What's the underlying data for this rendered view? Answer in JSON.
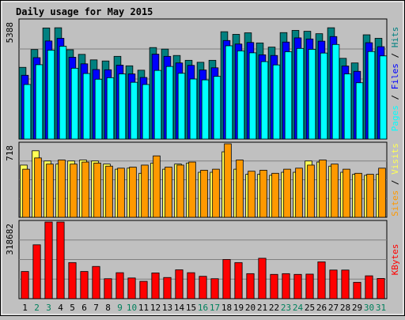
{
  "chart_data": [
    {
      "type": "bar",
      "title": "Daily usage for May 2015",
      "categories": [
        "1",
        "2",
        "3",
        "4",
        "5",
        "6",
        "7",
        "8",
        "9",
        "10",
        "11",
        "12",
        "13",
        "14",
        "15",
        "16",
        "17",
        "18",
        "19",
        "20",
        "21",
        "22",
        "23",
        "24",
        "25",
        "26",
        "27",
        "28",
        "29",
        "30",
        "31"
      ],
      "weekend_days": [
        "2",
        "3",
        "9",
        "10",
        "16",
        "17",
        "23",
        "24",
        "30",
        "31"
      ],
      "y_max_label": "718",
      "ylim": [
        0,
        718
      ],
      "series": [
        {
          "name": "Visits",
          "color": "#ffff55",
          "values": [
            510,
            650,
            550,
            520,
            550,
            560,
            550,
            520,
            470,
            480,
            430,
            530,
            470,
            520,
            530,
            440,
            440,
            640,
            470,
            420,
            420,
            410,
            440,
            440,
            550,
            540,
            500,
            440,
            420,
            410,
            420
          ]
        },
        {
          "name": "Sites",
          "color": "#ff9900",
          "values": [
            470,
            580,
            520,
            560,
            520,
            540,
            530,
            500,
            480,
            490,
            510,
            600,
            490,
            510,
            540,
            460,
            470,
            718,
            560,
            450,
            460,
            430,
            470,
            480,
            510,
            560,
            520,
            470,
            430,
            420,
            480
          ]
        }
      ],
      "axis_labels": [
        {
          "text": "Sites",
          "color": "#ff9900"
        },
        {
          "text": " / ",
          "color": "#000000"
        },
        {
          "text": "Visits",
          "color": "#ffff55"
        }
      ]
    },
    {
      "type": "bar",
      "categories": [
        "1",
        "2",
        "3",
        "4",
        "5",
        "6",
        "7",
        "8",
        "9",
        "10",
        "11",
        "12",
        "13",
        "14",
        "15",
        "16",
        "17",
        "18",
        "19",
        "20",
        "21",
        "22",
        "23",
        "24",
        "25",
        "26",
        "27",
        "28",
        "29",
        "30",
        "31"
      ],
      "y_max_label": "5388",
      "ylim": [
        0,
        5388
      ],
      "series": [
        {
          "name": "Hits",
          "color": "#008080",
          "values": [
            3260,
            4070,
            5050,
            5060,
            4060,
            3850,
            3600,
            3550,
            3760,
            3330,
            3130,
            4160,
            4090,
            3800,
            3580,
            3490,
            3580,
            4880,
            4760,
            4830,
            4370,
            4180,
            4840,
            4940,
            4900,
            4790,
            5060,
            3670,
            3460,
            4740,
            4580
          ]
        },
        {
          "name": "Files",
          "color": "#0000ff",
          "values": [
            2900,
            3700,
            4460,
            4580,
            3720,
            3420,
            3160,
            3150,
            3360,
            2960,
            2800,
            3860,
            3760,
            3460,
            3350,
            3140,
            3240,
            4480,
            4320,
            4390,
            3830,
            3800,
            4410,
            4600,
            4550,
            4450,
            4660,
            3320,
            3080,
            4380,
            4200
          ]
        },
        {
          "name": "Pages",
          "color": "#00ffff",
          "values": [
            2480,
            3380,
            4040,
            4220,
            3220,
            2980,
            2720,
            2790,
            2960,
            2580,
            2480,
            3120,
            3300,
            2990,
            2730,
            2690,
            2850,
            4240,
            4010,
            3920,
            3520,
            3370,
            3970,
            4120,
            4080,
            3910,
            4300,
            2960,
            2560,
            3980,
            3780
          ]
        }
      ],
      "axis_labels": [
        {
          "text": "Pages",
          "color": "#00ffff"
        },
        {
          "text": " / ",
          "color": "#000000"
        },
        {
          "text": "Files",
          "color": "#0000ff"
        },
        {
          "text": " / ",
          "color": "#000000"
        },
        {
          "text": "Hits",
          "color": "#008080"
        }
      ]
    },
    {
      "type": "bar",
      "categories": [
        "1",
        "2",
        "3",
        "4",
        "5",
        "6",
        "7",
        "8",
        "9",
        "10",
        "11",
        "12",
        "13",
        "14",
        "15",
        "16",
        "17",
        "18",
        "19",
        "20",
        "21",
        "22",
        "23",
        "24",
        "25",
        "26",
        "27",
        "28",
        "29",
        "30",
        "31"
      ],
      "y_max_label": "318682",
      "ylim": [
        0,
        318682
      ],
      "series": [
        {
          "name": "KBytes",
          "color": "#ff0000",
          "values": [
            113000,
            224000,
            318682,
            318682,
            150000,
            113000,
            134000,
            83000,
            108000,
            86000,
            72000,
            107000,
            88000,
            120000,
            108000,
            93000,
            83000,
            163000,
            150000,
            104000,
            168000,
            101000,
            104000,
            101000,
            102000,
            153000,
            119000,
            119000,
            68000,
            95000,
            84000
          ]
        }
      ],
      "axis_labels": [
        {
          "text": "KBytes",
          "color": "#ff0000"
        }
      ]
    }
  ],
  "colors": {
    "frame": "#c0c0c0",
    "plot_bg": "#c0c0c0",
    "title": "#0000ff",
    "weekday_label": "#000000",
    "weekend_label": "#00805c",
    "gridline": "#808080"
  }
}
